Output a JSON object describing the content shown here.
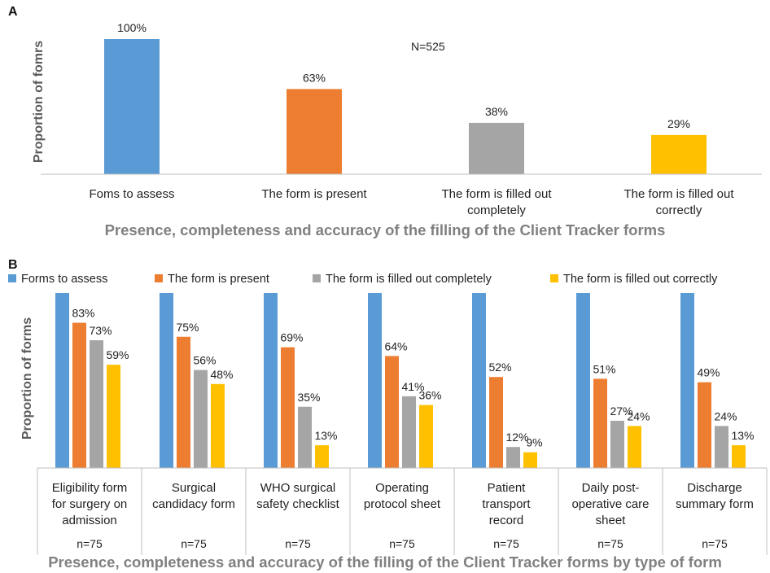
{
  "chart_data": [
    {
      "panel": "A",
      "type": "bar",
      "title": "",
      "annotation": "N=525",
      "categories": [
        [
          "Foms to assess"
        ],
        [
          "The form is present"
        ],
        [
          "The form is filled out",
          "completely"
        ],
        [
          "The form is filled out",
          "correctly"
        ]
      ],
      "values": [
        100,
        63,
        38,
        29
      ],
      "value_labels": [
        "100%",
        "63%",
        "38%",
        "29%"
      ],
      "colors": [
        "#5b9bd5",
        "#ed7d31",
        "#a5a5a5",
        "#ffc000"
      ],
      "ylabel": "Proportion of fomrs",
      "xlabel": "Presence, completeness and accuracy of the filling of the Client Tracker forms",
      "ylim": [
        0,
        100
      ],
      "grid": false
    },
    {
      "panel": "B",
      "type": "bar",
      "legend_position": "top",
      "series": [
        {
          "name": "Forms to assess",
          "color": "#5b9bd5",
          "values": [
            100,
            100,
            100,
            100,
            100,
            100,
            100
          ],
          "labels": [
            "",
            "",
            "",
            "",
            "",
            "",
            ""
          ]
        },
        {
          "name": "The form is present",
          "color": "#ed7d31",
          "values": [
            83,
            75,
            69,
            64,
            52,
            51,
            49
          ],
          "labels": [
            "83%",
            "75%",
            "69%",
            "64%",
            "52%",
            "51%",
            "49%"
          ]
        },
        {
          "name": "The form is filled out completely",
          "color": "#a5a5a5",
          "values": [
            73,
            56,
            35,
            41,
            12,
            27,
            24
          ],
          "labels": [
            "73%",
            "56%",
            "35%",
            "41%",
            "12%",
            "27%",
            "24%"
          ]
        },
        {
          "name": "The form is filled out correctly",
          "color": "#ffc000",
          "values": [
            59,
            48,
            13,
            36,
            9,
            24,
            13
          ],
          "labels": [
            "59%",
            "48%",
            "13%",
            "36%",
            "9%",
            "24%",
            "13%"
          ]
        }
      ],
      "categories": [
        [
          "Eligibility form",
          "for surgery on",
          "admission"
        ],
        [
          "Surgical",
          "candidacy form"
        ],
        [
          "WHO surgical",
          "safety checklist"
        ],
        [
          "Operating",
          "protocol sheet"
        ],
        [
          "Patient",
          "transport",
          "record"
        ],
        [
          "Daily post-",
          "operative care",
          "sheet"
        ],
        [
          "Discharge",
          "summary form"
        ]
      ],
      "n_labels": [
        "n=75",
        "n=75",
        "n=75",
        "n=75",
        "n=75",
        "n=75",
        "n=75"
      ],
      "ylabel": "Proportion  of forms",
      "xlabel": "Presence, completeness and accuracy of the filling of the Client Tracker forms by type of form",
      "ylim": [
        0,
        100
      ],
      "grid": false
    }
  ]
}
